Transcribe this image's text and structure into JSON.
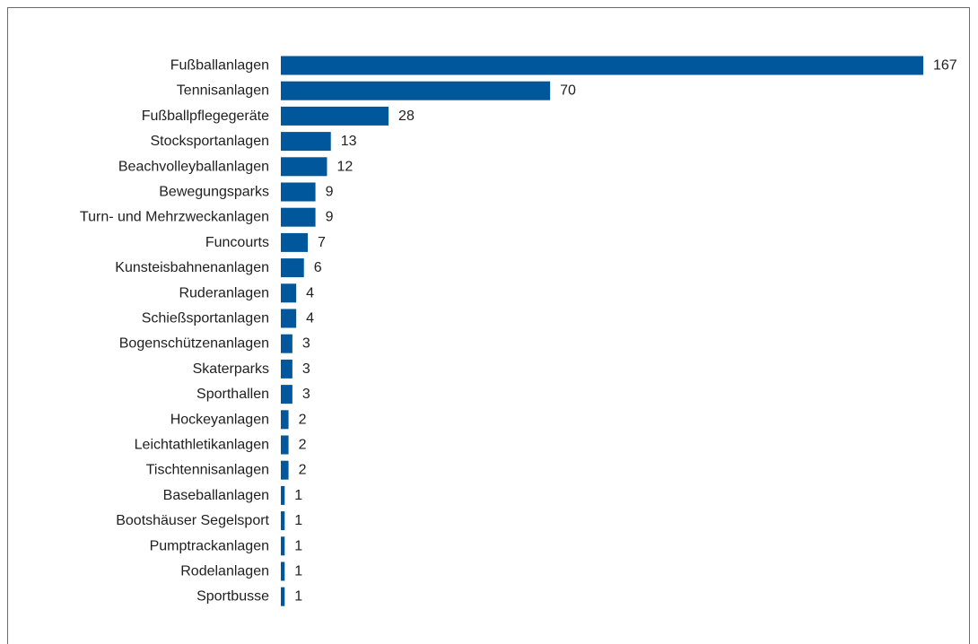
{
  "chart_data": {
    "type": "bar",
    "orientation": "horizontal",
    "title": "",
    "xlabel": "",
    "ylabel": "",
    "xlim": [
      0,
      167
    ],
    "grid": false,
    "legend": "none",
    "bar_color": "#00579b",
    "categories": [
      "Fußballanlagen",
      "Tennisanlagen",
      "Fußballpflegegeräte",
      "Stocksportanlagen",
      "Beachvolleyballanlagen",
      "Bewegungsparks",
      "Turn- und Mehrzweckanlagen",
      "Funcourts",
      "Kunsteisbahnenanlagen",
      "Ruderanlagen",
      "Schießsportanlagen",
      "Bogenschützenanlagen",
      "Skaterparks",
      "Sporthallen",
      "Hockeyanlagen",
      "Leichtathletikanlagen",
      "Tischtennisanlagen",
      "Baseballanlagen",
      "Bootshäuser Segelsport",
      "Pumptrackanlagen",
      "Rodelanlagen",
      "Sportbusse"
    ],
    "values": [
      167,
      70,
      28,
      13,
      12,
      9,
      9,
      7,
      6,
      4,
      4,
      3,
      3,
      3,
      2,
      2,
      2,
      1,
      1,
      1,
      1,
      1
    ]
  }
}
